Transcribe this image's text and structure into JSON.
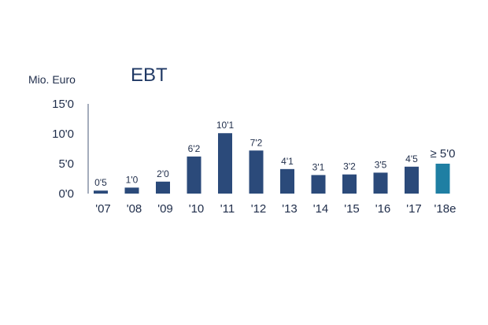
{
  "chart_data": {
    "type": "bar",
    "title": "EBT",
    "ylabel": "Mio. Euro",
    "xlabel": "",
    "ylim": [
      0,
      15
    ],
    "yticks": [
      "0'0",
      "5'0",
      "10'0",
      "15'0"
    ],
    "categories": [
      "'07",
      "'08",
      "'09",
      "'10",
      "'11",
      "'12",
      "'13",
      "'14",
      "'15",
      "'16",
      "'17",
      "'18e"
    ],
    "values": [
      0.5,
      1.0,
      2.0,
      6.2,
      10.1,
      7.2,
      4.1,
      3.1,
      3.2,
      3.5,
      4.5,
      5.0
    ],
    "data_labels": [
      "0'5",
      "1'0",
      "2'0",
      "6'2",
      "10'1",
      "7'2",
      "4'1",
      "3'1",
      "3'2",
      "3'5",
      "4'5",
      "≥ 5'0"
    ],
    "colors": [
      "#2b4a7a",
      "#2b4a7a",
      "#2b4a7a",
      "#2b4a7a",
      "#2b4a7a",
      "#2b4a7a",
      "#2b4a7a",
      "#2b4a7a",
      "#2b4a7a",
      "#2b4a7a",
      "#2b4a7a",
      "#1f7fa3"
    ],
    "grid": false,
    "legend": "none"
  }
}
